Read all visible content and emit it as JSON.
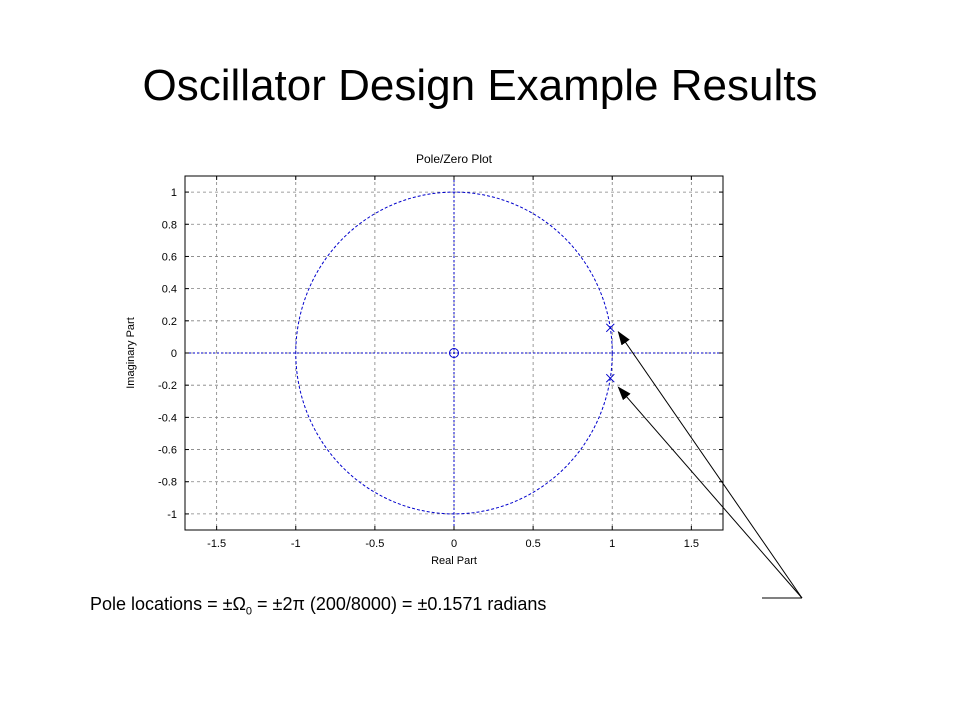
{
  "slide": {
    "title": "Oscillator Design Example Results",
    "caption": {
      "prefix": "Pole locations = ±Ω",
      "subscript": "0",
      "suffix": " = ±2π (200/8000) = ±0.1571 radians"
    }
  },
  "colors": {
    "plot_line": "#0000cc",
    "grid": "#808080",
    "arrow": "#000000"
  },
  "chart_data": {
    "type": "scatter",
    "title": "Pole/Zero Plot",
    "xlabel": "Real Part",
    "ylabel": "Imaginary Part",
    "xlim": [
      -1.7,
      1.7
    ],
    "ylim": [
      -1.1,
      1.1
    ],
    "xticks": [
      -1.5,
      -1,
      -0.5,
      0,
      0.5,
      1,
      1.5
    ],
    "xtick_labels": [
      "-1.5",
      "-1",
      "-0.5",
      "0",
      "0.5",
      "1",
      "1.5"
    ],
    "yticks": [
      -1,
      -0.8,
      -0.6,
      -0.4,
      -0.2,
      0,
      0.2,
      0.4,
      0.6,
      0.8,
      1
    ],
    "ytick_labels": [
      "-1",
      "-0.8",
      "-0.6",
      "-0.4",
      "-0.2",
      "0",
      "0.2",
      "0.4",
      "0.6",
      "0.8",
      "1"
    ],
    "grid": true,
    "unit_circle": true,
    "zeros": [
      {
        "re": 0,
        "im": 0
      }
    ],
    "poles": [
      {
        "re": 0.9877,
        "im": 0.1564
      },
      {
        "re": 0.9877,
        "im": -0.1564
      }
    ],
    "annotation_target_poles": [
      0,
      1
    ]
  }
}
